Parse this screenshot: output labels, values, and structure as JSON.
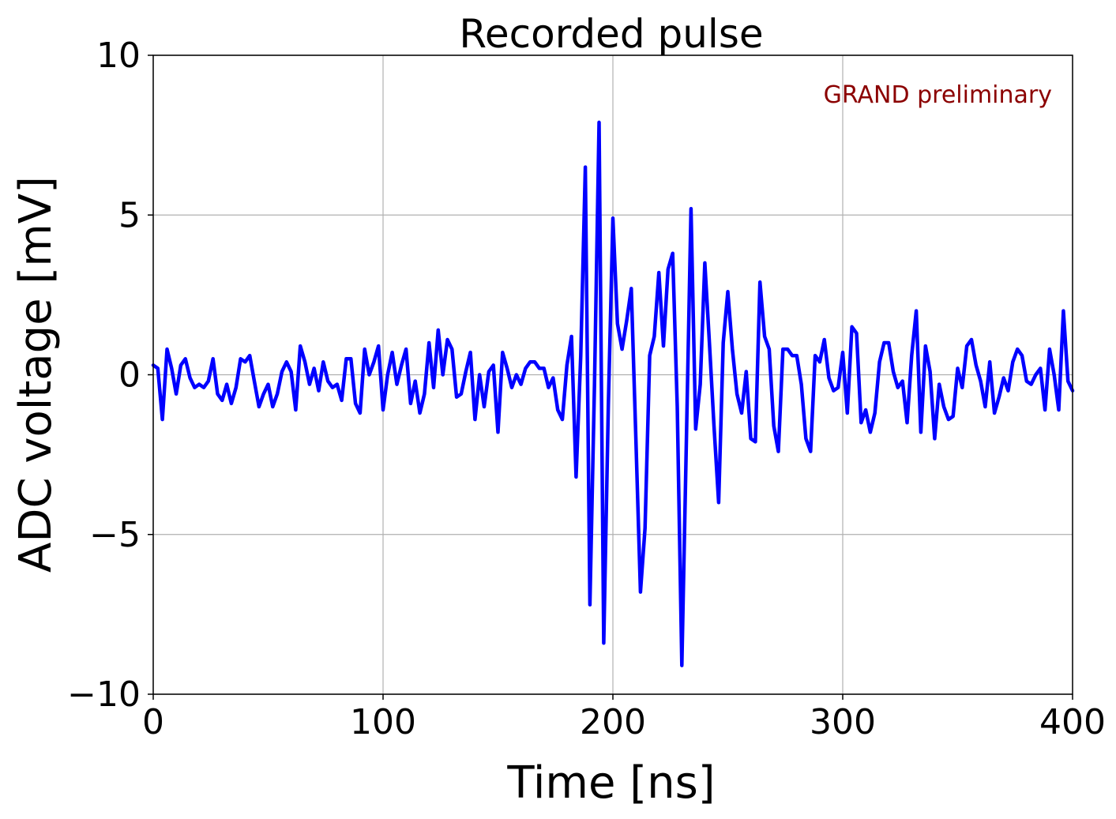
{
  "chart_data": {
    "type": "line",
    "title": "Recorded pulse",
    "xlabel": "Time [ns]",
    "ylabel": "ADC voltage [mV]",
    "annotation": "GRAND preliminary",
    "xlim": [
      0,
      400
    ],
    "ylim": [
      -10,
      10
    ],
    "xticks": [
      0,
      100,
      200,
      300,
      400
    ],
    "xtick_labels": [
      "0",
      "100",
      "200",
      "300",
      "400"
    ],
    "yticks": [
      -10,
      -5,
      0,
      5,
      10
    ],
    "ytick_labels": [
      "−10",
      "−5",
      "0",
      "5",
      "10"
    ],
    "grid": true,
    "colors": {
      "line": "#0000ff",
      "annotation": "#8b0000",
      "grid": "#b0b0b0"
    },
    "series": [
      {
        "x": [
          0,
          2,
          4,
          6,
          8,
          10,
          12,
          14,
          16,
          18,
          20,
          22,
          24,
          26,
          28,
          30,
          32,
          34,
          36,
          38,
          40,
          42,
          44,
          46,
          48,
          50,
          52,
          54,
          56,
          58,
          60,
          62,
          64,
          66,
          68,
          70,
          72,
          74,
          76,
          78,
          80,
          82,
          84,
          86,
          88,
          90,
          92,
          94,
          96,
          98,
          100,
          102,
          104,
          106,
          108,
          110,
          112,
          114,
          116,
          118,
          120,
          122,
          124,
          126,
          128,
          130,
          132,
          134,
          136,
          138,
          140,
          142,
          144,
          146,
          148,
          150,
          152,
          154,
          156,
          158,
          160,
          162,
          164,
          166,
          168,
          170,
          172,
          174,
          176,
          178,
          180,
          182,
          184,
          186,
          188,
          190,
          192,
          194,
          196,
          198,
          200,
          202,
          204,
          206,
          208,
          210,
          212,
          214,
          216,
          218,
          220,
          222,
          224,
          226,
          228,
          230,
          232,
          234,
          236,
          238,
          240,
          242,
          244,
          246,
          248,
          250,
          252,
          254,
          256,
          258,
          260,
          262,
          264,
          266,
          268,
          270,
          272,
          274,
          276,
          278,
          280,
          282,
          284,
          286,
          288,
          290,
          292,
          294,
          296,
          298,
          300,
          302,
          304,
          306,
          308,
          310,
          312,
          314,
          316,
          318,
          320,
          322,
          324,
          326,
          328,
          330,
          332,
          334,
          336,
          338,
          340,
          342,
          344,
          346,
          348,
          350,
          352,
          354,
          356,
          358,
          360,
          362,
          364,
          366,
          368,
          370,
          372,
          374,
          376,
          378,
          380,
          382,
          384,
          386,
          388,
          390,
          392,
          394,
          396,
          398,
          400
        ],
        "values": [
          0.3,
          0.2,
          -1.4,
          0.8,
          0.2,
          -0.6,
          0.3,
          0.5,
          -0.1,
          -0.4,
          -0.3,
          -0.4,
          -0.2,
          0.5,
          -0.6,
          -0.8,
          -0.3,
          -0.9,
          -0.4,
          0.5,
          0.4,
          0.6,
          -0.2,
          -1.0,
          -0.6,
          -0.3,
          -1.0,
          -0.6,
          0.1,
          0.4,
          0.1,
          -1.1,
          0.9,
          0.4,
          -0.3,
          0.2,
          -0.5,
          0.4,
          -0.2,
          -0.4,
          -0.3,
          -0.8,
          0.5,
          0.5,
          -0.9,
          -1.2,
          0.8,
          0.0,
          0.4,
          0.9,
          -1.1,
          0.0,
          0.7,
          -0.3,
          0.3,
          0.8,
          -0.9,
          -0.2,
          -1.2,
          -0.6,
          1.0,
          -0.4,
          1.4,
          0.0,
          1.1,
          0.8,
          -0.7,
          -0.6,
          0.1,
          0.7,
          -1.4,
          0.0,
          -1.0,
          0.1,
          0.3,
          -1.8,
          0.7,
          0.2,
          -0.4,
          0.0,
          -0.3,
          0.2,
          0.4,
          0.4,
          0.2,
          0.2,
          -0.4,
          -0.1,
          -1.1,
          -1.4,
          0.3,
          1.2,
          -3.2,
          0.6,
          6.5,
          -7.2,
          -0.3,
          7.9,
          -8.4,
          -1.0,
          4.9,
          1.6,
          0.8,
          1.7,
          2.7,
          -2.0,
          -6.8,
          -4.8,
          0.6,
          1.2,
          3.2,
          0.9,
          3.3,
          3.8,
          -1.0,
          -9.1,
          -2.0,
          5.2,
          -1.7,
          -0.3,
          3.5,
          1.0,
          -1.6,
          -4.0,
          1.0,
          2.6,
          0.8,
          -0.6,
          -1.2,
          0.1,
          -2.0,
          -2.1,
          2.9,
          1.2,
          0.8,
          -1.6,
          -2.4,
          0.8,
          0.8,
          0.6,
          0.6,
          -0.3,
          -2.0,
          -2.4,
          0.6,
          0.4,
          1.1,
          -0.1,
          -0.5,
          -0.4,
          0.7,
          -1.2,
          1.5,
          1.3,
          -1.5,
          -1.1,
          -1.8,
          -1.2,
          0.4,
          1.0,
          1.0,
          0.1,
          -0.4,
          -0.2,
          -1.5,
          0.6,
          2.0,
          -1.8,
          0.9,
          0.1,
          -2.0,
          -0.3,
          -1.0,
          -1.4,
          -1.3,
          0.2,
          -0.4,
          0.9,
          1.1,
          0.3,
          -0.2,
          -1.0,
          0.4,
          -1.2,
          -0.7,
          -0.1,
          -0.5,
          0.4,
          0.8,
          0.6,
          -0.2,
          -0.3,
          0.0,
          0.2,
          -1.1,
          0.8,
          0.0,
          -1.1,
          2.0,
          -0.2,
          -0.5
        ]
      }
    ]
  }
}
